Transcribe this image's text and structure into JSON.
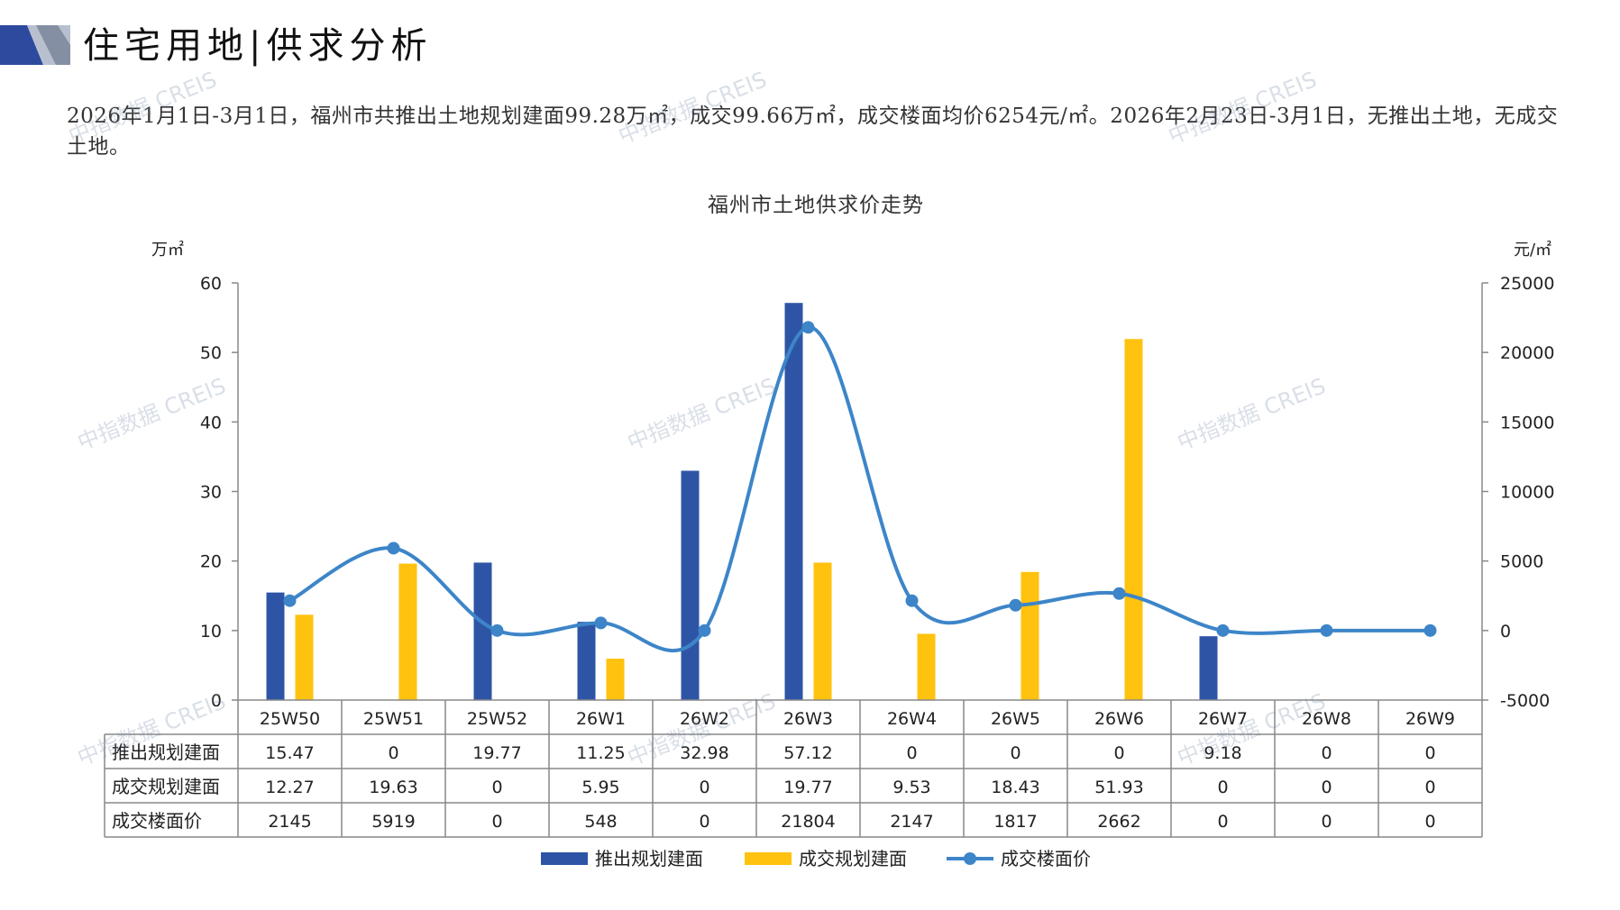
{
  "header": {
    "title": "住宅用地|供求分析",
    "summary": "2026年1月1日-3月1日，福州市共推出土地规划建面99.28万㎡，成交99.66万㎡，成交楼面均价6254元/㎡。2026年2月23日-3月1日，无推出土地，无成交土地。"
  },
  "colors": {
    "supply": "#2E55A5",
    "deal": "#FFC20E",
    "price": "#3D85C8",
    "header_dark": "#2E4A9E",
    "header_grey": "#9AA3B5"
  },
  "watermark_text": "中指数据 CREIS",
  "chart_data": {
    "type": "bar",
    "title": "福州市土地供求价走势",
    "ylabel_left": "万㎡",
    "ylabel_right": "元/㎡",
    "ylim_left": [
      0,
      60
    ],
    "yticks_left": [
      0,
      10,
      20,
      30,
      40,
      50,
      60
    ],
    "ylim_right": [
      -5000,
      25000
    ],
    "yticks_right": [
      -5000,
      0,
      5000,
      10000,
      15000,
      20000,
      25000
    ],
    "categories": [
      "25W50",
      "25W51",
      "25W52",
      "26W1",
      "26W2",
      "26W3",
      "26W4",
      "26W5",
      "26W6",
      "26W7",
      "26W8",
      "26W9"
    ],
    "series": [
      {
        "name": "推出规划建面",
        "type": "bar",
        "axis": "left",
        "values": [
          15.47,
          0,
          19.77,
          11.25,
          32.98,
          57.12,
          0,
          0,
          0,
          9.18,
          0,
          0
        ],
        "labels": [
          "15.47",
          "0",
          "19.77",
          "11.25",
          "32.98",
          "57.12",
          "0",
          "0",
          "0",
          "9.18",
          "0",
          "0"
        ]
      },
      {
        "name": "成交规划建面",
        "type": "bar",
        "axis": "left",
        "values": [
          12.27,
          19.63,
          0,
          5.95,
          0,
          19.77,
          9.53,
          18.43,
          51.93,
          0,
          0,
          0
        ],
        "labels": [
          "12.27",
          "19.63",
          "0",
          "5.95",
          "0",
          "19.77",
          "9.53",
          "18.43",
          "51.93",
          "0",
          "0",
          "0"
        ]
      },
      {
        "name": "成交楼面价",
        "type": "line",
        "axis": "right",
        "values": [
          2145,
          5919,
          0,
          548,
          0,
          21804,
          2147,
          1817,
          2662,
          0,
          0,
          0
        ],
        "labels": [
          "2145",
          "5919",
          "0",
          "548",
          "0",
          "21804",
          "2147",
          "1817",
          "2662",
          "0",
          "0",
          "0"
        ]
      }
    ],
    "legend": "bottom",
    "grid": false,
    "data_table": true
  }
}
